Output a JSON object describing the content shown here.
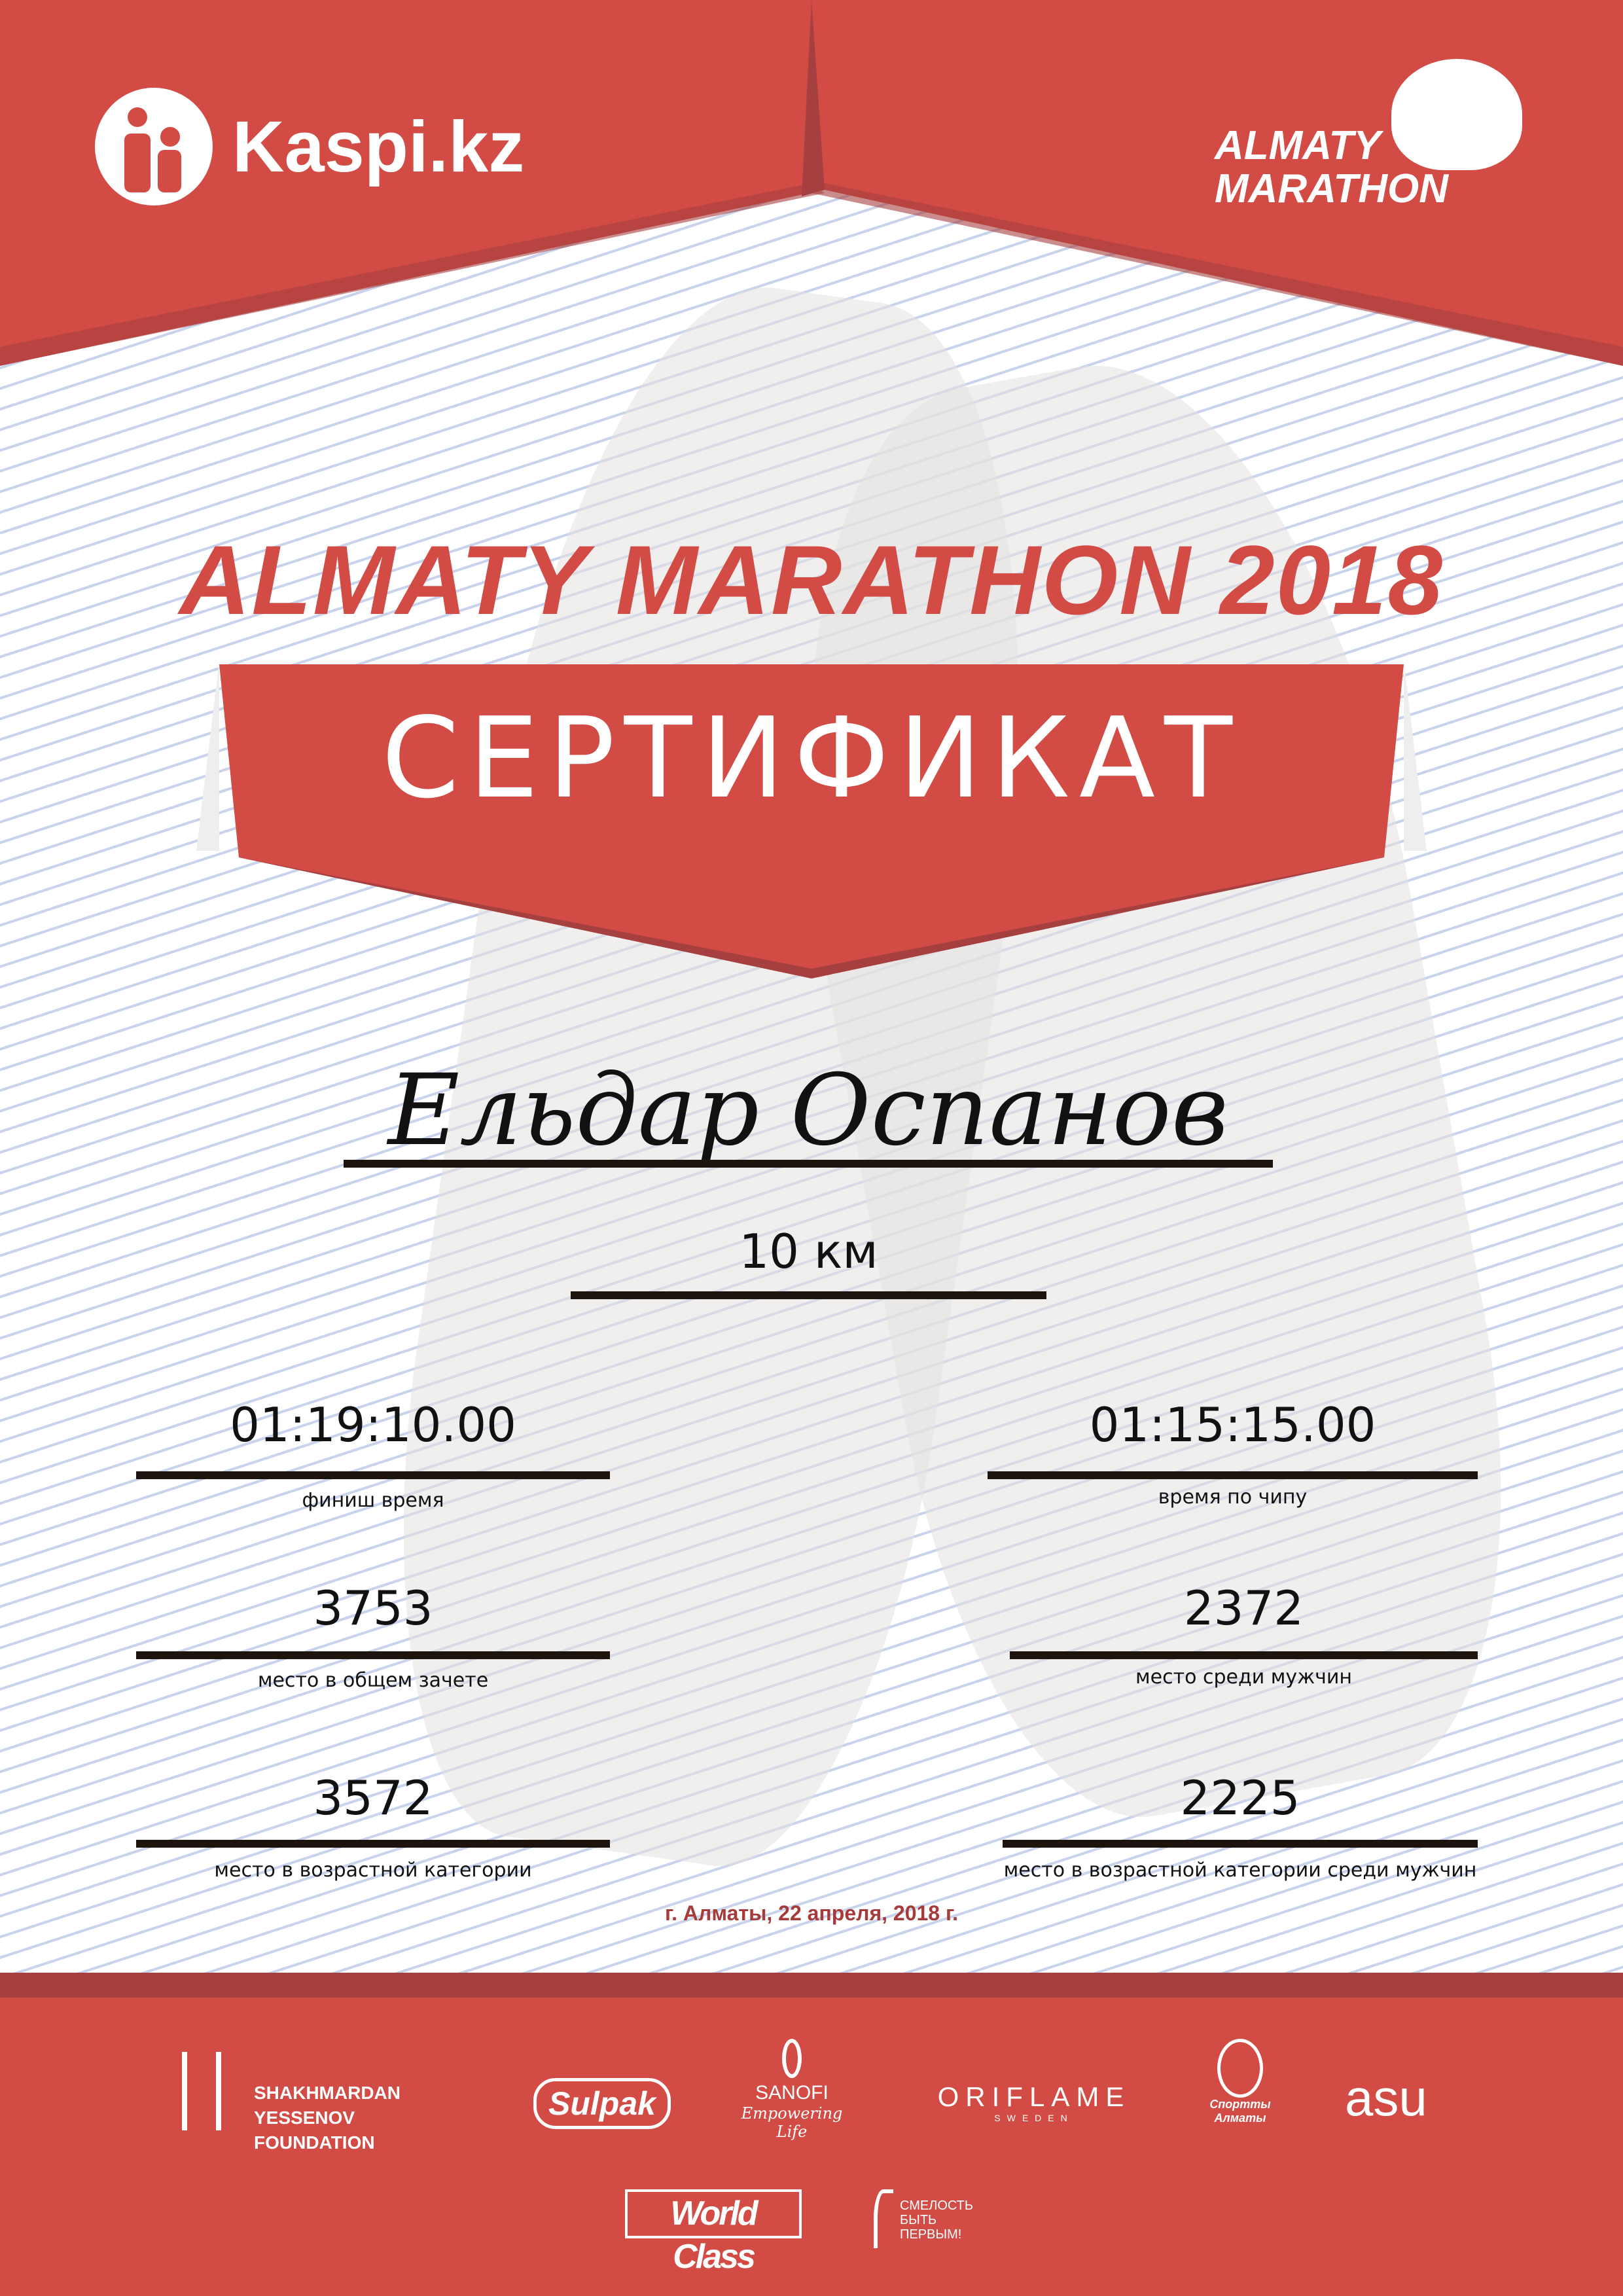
{
  "header": {
    "sponsor_logo": "Kaspi.kz",
    "event_logo_line1": "ALMATY",
    "event_logo_line2": "MARATHON"
  },
  "colors": {
    "primary": "#d24b45",
    "dark": "#a64040",
    "date": "#a63b3b",
    "lines": "#c9d3ec"
  },
  "title": "ALMATY MARATHON 2018",
  "certificate_label": "СЕРТИФИКАТ",
  "participant": {
    "name": "Ельдар Оспанов",
    "distance": "10 км"
  },
  "results": {
    "finish_time": {
      "value": "01:19:10.00",
      "label": "финиш время"
    },
    "chip_time": {
      "value": "01:15:15.00",
      "label": "время по чипу"
    },
    "overall_place": {
      "value": "3753",
      "label": "место в общем зачете"
    },
    "gender_place": {
      "value": "2372",
      "label": "место среди мужчин"
    },
    "age_place": {
      "value": "3572",
      "label": "место в возрастной категории"
    },
    "age_gender_place": {
      "value": "2225",
      "label": "место в возрастной категории среди мужчин"
    }
  },
  "date": "г. Алматы, 22 апреля, 2018 г.",
  "partners": {
    "yessenov": "SHAKHMARDAN YESSENOV FOUNDATION",
    "sulpak": "Sulpak",
    "sanofi": "SANOFI",
    "sanofi_tagline": "Empowering Life",
    "oriflame": "ORIFLAME",
    "oriflame_sub": "SWEDEN",
    "sport_almaty": "Спортты Алматы",
    "asu": "asu",
    "worldclass": "World Class",
    "fund": "СМЕЛОСТЬ БЫТЬ ПЕРВЫМ!"
  }
}
